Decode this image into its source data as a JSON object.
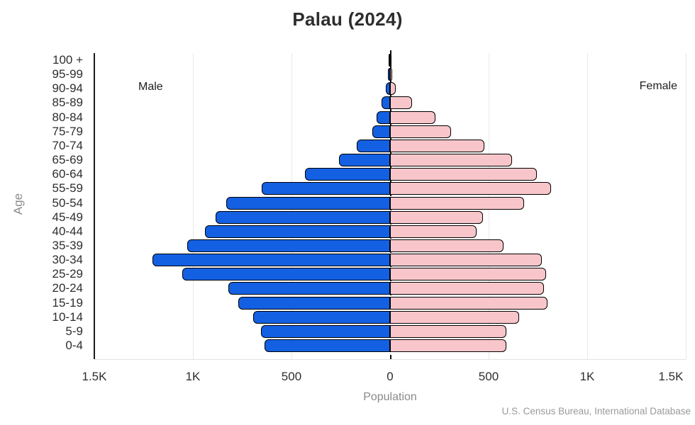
{
  "title": "Palau (2024)",
  "labels": {
    "male": "Male",
    "female": "Female",
    "xlabel": "Population",
    "ylabel": "Age",
    "source": "U.S. Census Bureau, International Database"
  },
  "colors": {
    "male_fill": "#1460e2",
    "female_fill": "#f8c6ca",
    "bar_border": "#000000",
    "grid": "#e9e9e9",
    "axis_spine": "#1a1a1a",
    "text_dark": "#2e2e2e",
    "text_gray": "#8a8a8a"
  },
  "chart_data": {
    "type": "bar",
    "subtype": "population-pyramid",
    "title": "Palau (2024)",
    "xlabel": "Population",
    "ylabel": "Age",
    "grid": true,
    "xlim": [
      -1500,
      1500
    ],
    "xticks": [
      -1500,
      -1000,
      -500,
      0,
      500,
      1000,
      1500
    ],
    "xtick_labels": [
      "1.5K",
      "1K",
      "500",
      "0",
      "500",
      "1K",
      "1.5K"
    ],
    "categories": [
      "100 +",
      "95-99",
      "90-94",
      "85-89",
      "80-84",
      "75-79",
      "70-74",
      "65-69",
      "60-64",
      "55-59",
      "50-54",
      "45-49",
      "40-44",
      "35-39",
      "30-34",
      "25-29",
      "20-24",
      "15-19",
      "10-14",
      "5-9",
      "0-4"
    ],
    "series": [
      {
        "name": "Male",
        "values": [
          5,
          10,
          20,
          45,
          70,
          90,
          170,
          260,
          430,
          650,
          830,
          885,
          940,
          1030,
          1205,
          1055,
          820,
          770,
          695,
          655,
          635
        ]
      },
      {
        "name": "Female",
        "values": [
          5,
          10,
          30,
          110,
          230,
          310,
          480,
          620,
          745,
          815,
          680,
          470,
          440,
          575,
          770,
          790,
          780,
          800,
          655,
          590,
          590
        ]
      }
    ]
  }
}
